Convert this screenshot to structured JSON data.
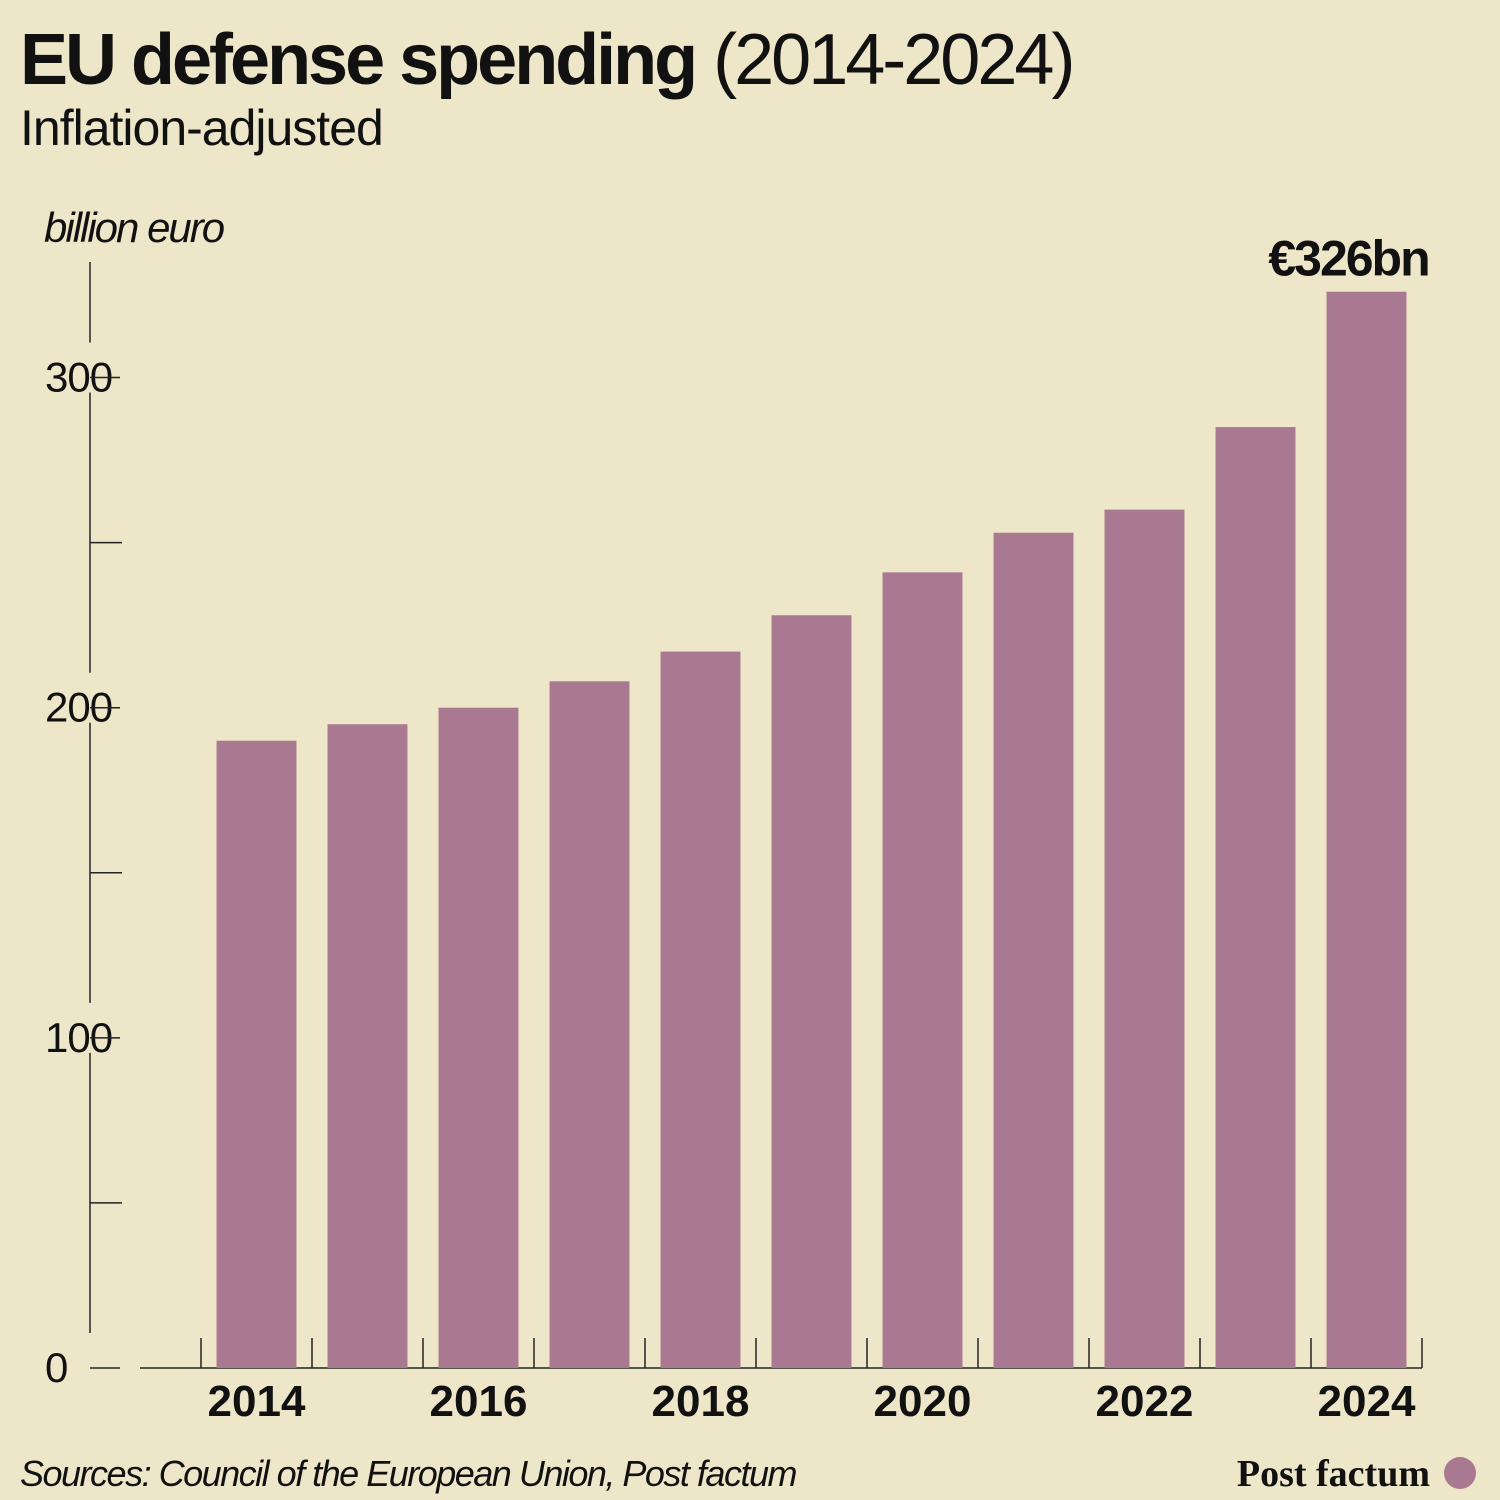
{
  "chart_data": {
    "type": "bar",
    "title": "EU defense spending",
    "title_years": "(2014-2024)",
    "subtitle": "Inflation-adjusted",
    "y_label": "billion euro",
    "source": "Sources: Council of the European Union, Post factum",
    "brand": "Post factum",
    "categories": [
      "2014",
      null,
      "2016",
      null,
      "2018",
      null,
      "2020",
      null,
      "2022",
      null,
      "2024"
    ],
    "values": [
      190,
      195,
      200,
      208,
      217,
      228,
      241,
      253,
      260,
      285,
      326
    ],
    "value_labels": [
      null,
      null,
      null,
      null,
      null,
      null,
      null,
      null,
      null,
      null,
      "€326bn"
    ],
    "color": "#a97891",
    "ylim": [
      0,
      335
    ],
    "yticks": [
      0,
      100,
      200,
      300
    ],
    "minor_yticks": [
      50,
      150,
      250
    ],
    "grid": false
  }
}
